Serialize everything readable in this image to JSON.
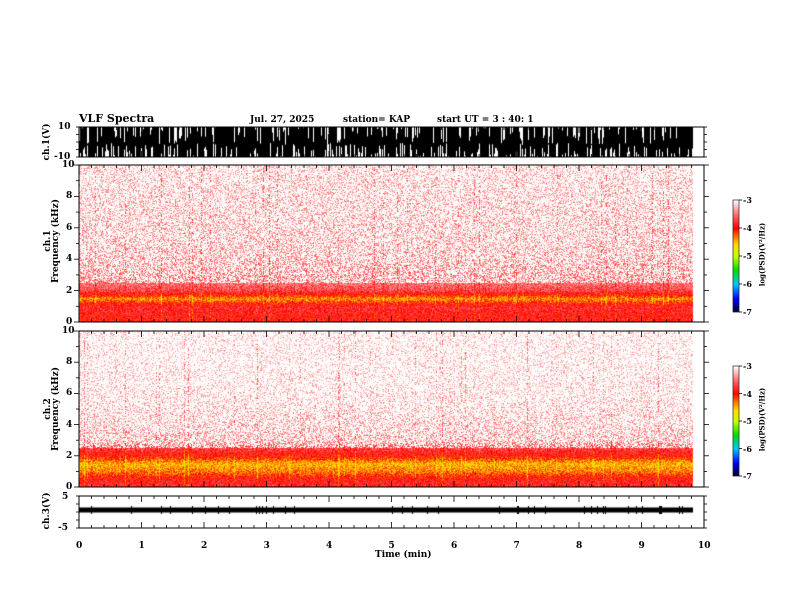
{
  "header": {
    "title": "VLF Spectra",
    "date": "Jul. 27, 2025",
    "station": "station= KAP",
    "start": "start  UT =  3 : 40: 1"
  },
  "panels": {
    "ch1_wave": {
      "label": "ch.1(V)",
      "ticks": [
        "10",
        "-10"
      ]
    },
    "ch1_spec": {
      "label": "ch.1\nFrequency (kHz)",
      "label_a": "ch.1",
      "label_b": "Frequency (kHz)"
    },
    "ch2_spec": {
      "label_a": "ch.2",
      "label_b": "Frequency (kHz)"
    },
    "ch3_wave": {
      "label": "ch.3(V)",
      "ticks": [
        "5",
        "-5"
      ]
    }
  },
  "colorbar": {
    "label": "log(PSD)(V²/Hz)",
    "ticks": [
      "-3",
      "-4",
      "-5",
      "-6",
      "-7"
    ]
  },
  "chart_data": {
    "type": "heatmap",
    "title": "VLF Spectra",
    "xlabel": "Time (min)",
    "xlim": [
      0,
      10
    ],
    "x_ticks": [
      "0",
      "1",
      "2",
      "3",
      "4",
      "5",
      "6",
      "7",
      "8",
      "9",
      "10"
    ],
    "data_end_min": 9.82,
    "ylabel": "Frequency (kHz)",
    "ylim": [
      0,
      10
    ],
    "y_ticks": [
      "0",
      "2",
      "4",
      "6",
      "8",
      "10"
    ],
    "color_range_logPSD": [
      -7,
      -3
    ],
    "spectrograms": [
      {
        "channel": "ch.1",
        "profile_freq_khz": [
          0,
          0.5,
          1,
          1.5,
          2,
          2.5,
          3,
          4,
          5,
          6,
          8,
          10
        ],
        "profile_logPSD": [
          -3.9,
          -3.9,
          -3.8,
          -4.4,
          -3.7,
          -3.5,
          -3.45,
          -3.35,
          -3.3,
          -3.28,
          -3.25,
          -3.2
        ]
      },
      {
        "channel": "ch.2",
        "profile_freq_khz": [
          0,
          0.5,
          1,
          1.5,
          2,
          2.5,
          3,
          4,
          5,
          6,
          8,
          10
        ],
        "profile_logPSD": [
          -3.8,
          -3.9,
          -4.3,
          -4.5,
          -4.0,
          -3.7,
          -3.35,
          -3.25,
          -3.2,
          -3.15,
          -3.12,
          -3.1
        ]
      }
    ],
    "waveforms": [
      {
        "channel": "ch.1",
        "ylim": [
          -10,
          10
        ],
        "amplitude_V": 10,
        "saturated": true
      },
      {
        "channel": "ch.3",
        "ylim": [
          -5,
          5
        ],
        "offset_V": 0.5,
        "amplitude_V": 0.5
      }
    ]
  },
  "colors": {
    "background": "#ffffff",
    "ink": "#000000"
  }
}
